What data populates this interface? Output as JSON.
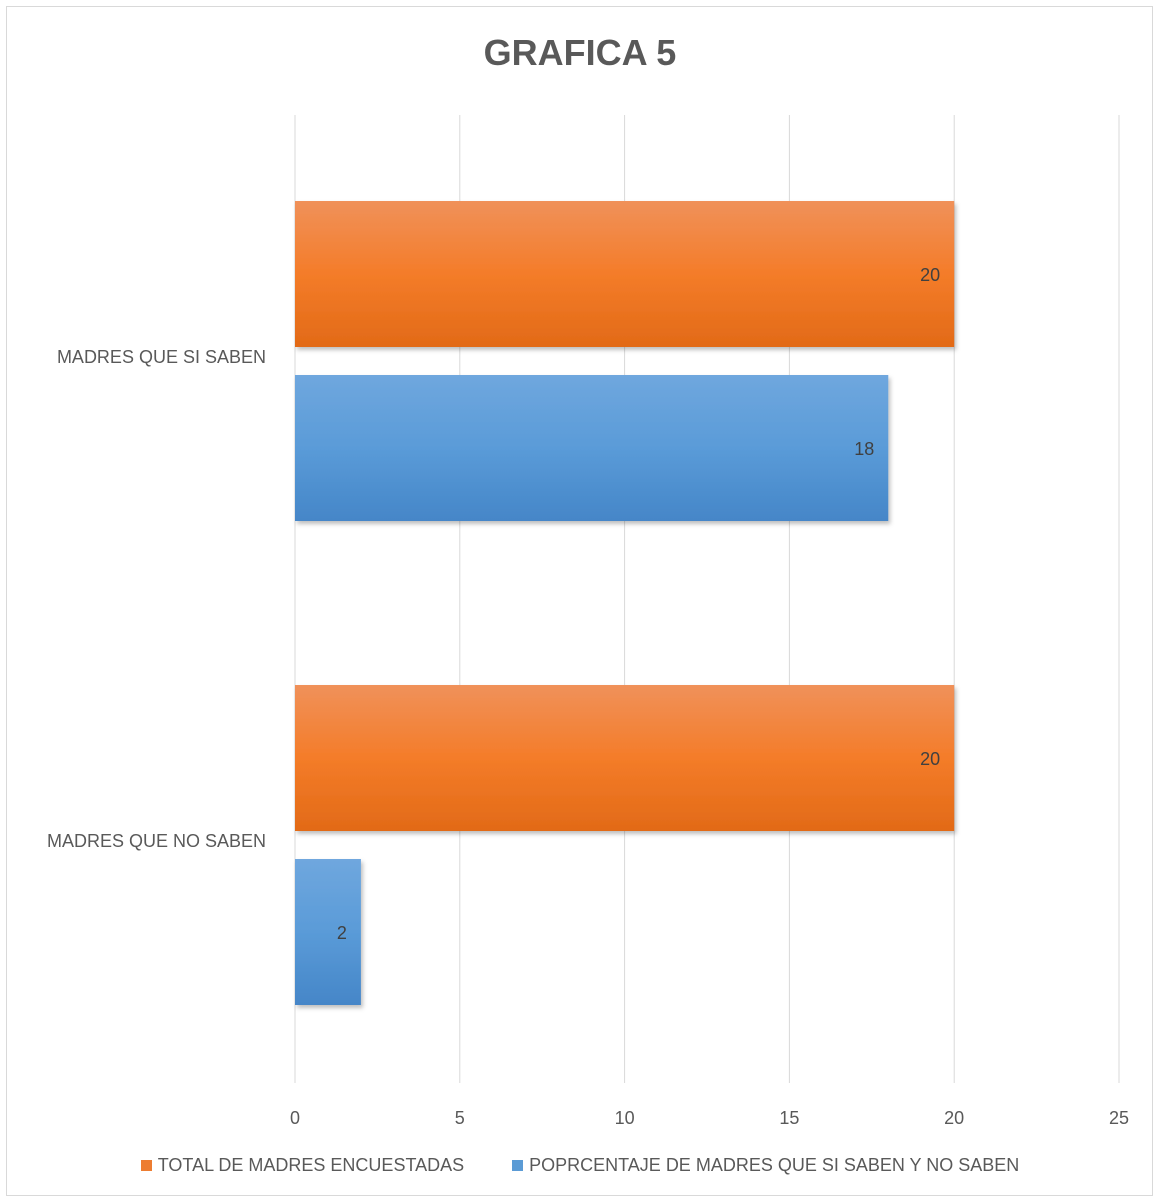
{
  "chart_data": {
    "type": "bar",
    "orientation": "horizontal",
    "title": "GRAFICA 5",
    "categories": [
      "MADRES QUE SI SABEN",
      "MADRES QUE NO SABEN"
    ],
    "series": [
      {
        "name": "TOTAL DE MADRES ENCUESTADAS",
        "values": [
          20,
          20
        ],
        "color": "#ED7D31"
      },
      {
        "name": "POPRCENTAJE DE MADRES QUE SI SABEN Y NO SABEN",
        "values": [
          18,
          2
        ],
        "color": "#5B9BD5"
      }
    ],
    "xlim": [
      0,
      25
    ],
    "xticks": [
      0,
      5,
      10,
      15,
      20,
      25
    ],
    "xlabel": "",
    "ylabel": "",
    "grid": "vertical",
    "legend_position": "bottom",
    "data_labels": true
  }
}
